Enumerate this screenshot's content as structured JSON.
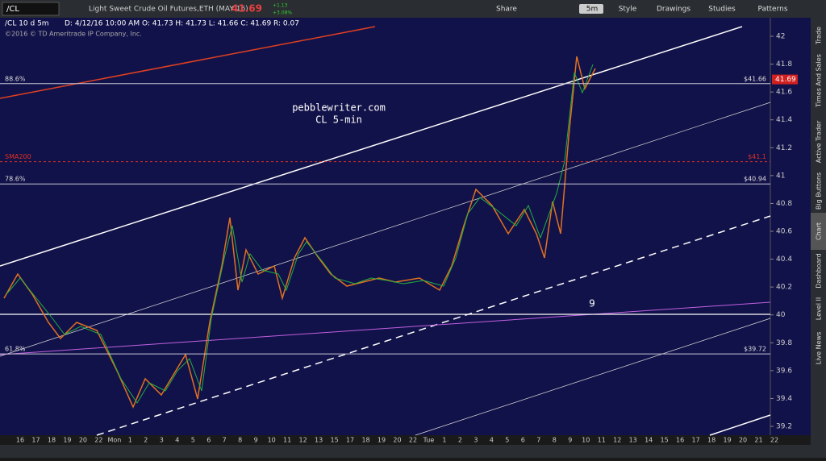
{
  "toolbar": {
    "symbol": "/CL",
    "description": "Light Sweet Crude Oil Futures,ETH (MAY 16)",
    "last": "41.69",
    "change": "+1.13",
    "change_pct": "+3.08%",
    "buttons": [
      "Share",
      "5m",
      "Style",
      "Drawings",
      "Studies",
      "Patterns"
    ]
  },
  "chart": {
    "header": "/CL 10 d 5m",
    "ohlc": "D: 4/12/16 10:00 AM   O: 41.73   H: 41.73   L: 41.66   C: 41.69   R: 0.07",
    "copyright": "©2016 © TD Ameritrade IP Company, Inc.",
    "annotations": [
      "pebblewriter.com",
      "CL 5-min",
      "9"
    ],
    "levels": [
      {
        "name": "88.6%",
        "price": {
          "value": 41.66,
          "label": "$41.66"
        },
        "color": "#c8c8d8"
      },
      {
        "name": "SMA200",
        "price": {
          "value": 41.1,
          "label": "$41.1"
        },
        "color": "#e03020"
      },
      {
        "name": "78.6%",
        "price": {
          "value": 40.94,
          "label": "$40.94"
        },
        "color": "#c8c8d8"
      },
      {
        "name": "61.8%",
        "price": {
          "value": 39.72,
          "label": "$39.72"
        },
        "color": "#c8c8d8"
      }
    ],
    "current_price": {
      "value": 41.69,
      "label": "41.69"
    },
    "price_axis": [
      42,
      41.8,
      41.6,
      41.4,
      41.2,
      41,
      40.8,
      40.6,
      40.4,
      40.2,
      40,
      39.8,
      39.6,
      39.4,
      39.2
    ],
    "time_axis": [
      "16",
      "17",
      "18",
      "19",
      "20",
      "22",
      "Mon",
      "1",
      "2",
      "3",
      "4",
      "5",
      "6",
      "7",
      "8",
      "9",
      "10",
      "11",
      "12",
      "13",
      "15",
      "17",
      "18",
      "19",
      "20",
      "22",
      "Tue",
      "1",
      "2",
      "3",
      "4",
      "5",
      "6",
      "7",
      "8",
      "9",
      "10",
      "11",
      "12",
      "13",
      "14",
      "15",
      "16",
      "17",
      "18",
      "19",
      "20",
      "21",
      "22"
    ]
  },
  "side_tabs": [
    "Trade",
    "Times And Sales",
    "Active Trader",
    "Big Buttons",
    "Chart",
    "Dashboard",
    "Level II",
    "Live News"
  ]
}
